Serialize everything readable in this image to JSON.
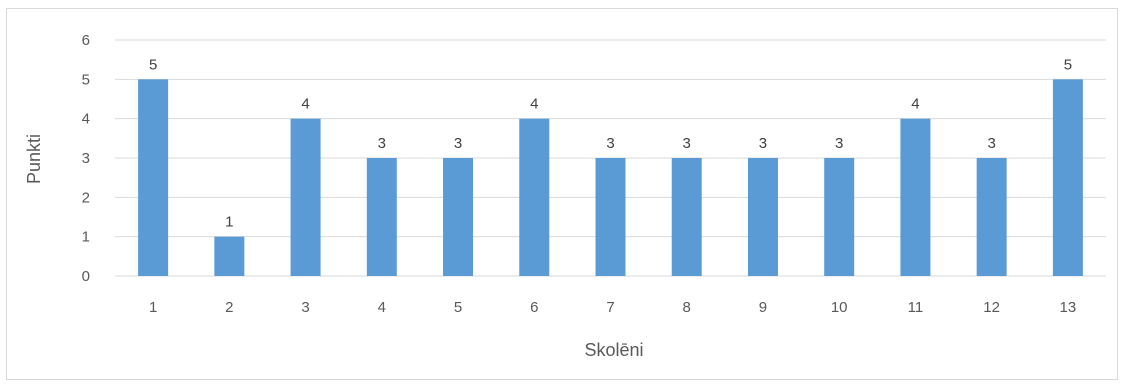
{
  "chart_data": {
    "type": "bar",
    "title": "",
    "xlabel": "Skolēni",
    "ylabel": "Punkti",
    "categories": [
      "1",
      "2",
      "3",
      "4",
      "5",
      "6",
      "7",
      "8",
      "9",
      "10",
      "11",
      "12",
      "13"
    ],
    "values": [
      5,
      1,
      4,
      3,
      3,
      4,
      3,
      3,
      3,
      3,
      4,
      3,
      5
    ],
    "data_labels": [
      "5",
      "1",
      "4",
      "3",
      "3",
      "4",
      "3",
      "3",
      "3",
      "3",
      "4",
      "3",
      "5"
    ],
    "ylim": [
      0,
      6
    ],
    "yticks": [
      "0",
      "1",
      "2",
      "3",
      "4",
      "5",
      "6"
    ],
    "grid": true,
    "legend": "none",
    "colors": {
      "bar": "#5b9bd5",
      "grid": "#d9d9d9",
      "text": "#595959"
    }
  }
}
